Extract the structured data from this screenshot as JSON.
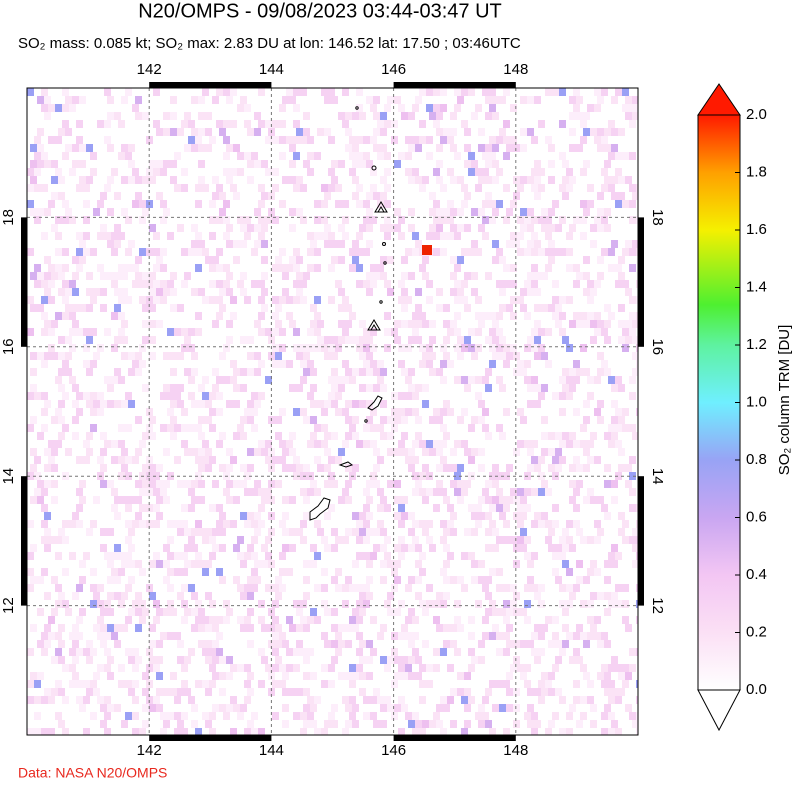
{
  "header": {
    "title": "N20/OMPS - 09/08/2023 03:44-03:47 UT",
    "subtitle": "SO₂ mass: 0.085 kt; SO₂ max: 2.83 DU at lon: 146.52 lat: 17.50 ; 03:46UTC"
  },
  "map": {
    "lonlim": [
      140,
      150
    ],
    "latlim": [
      10,
      20
    ],
    "lon_ticks": [
      142,
      144,
      146,
      148
    ],
    "lat_ticks": [
      12,
      14,
      16,
      18
    ]
  },
  "colorbar": {
    "label": "SO₂ column TRM [DU]",
    "lim": [
      0,
      2
    ],
    "ticks": [
      {
        "value": 0,
        "label": "0.0"
      },
      0.2,
      0.4,
      0.6,
      0.8,
      {
        "value": 1,
        "label": "1.0"
      },
      1.2,
      1.4,
      1.6,
      1.8,
      {
        "value": 2,
        "label": "2.0"
      }
    ]
  },
  "footer": {
    "credit": "Data: NASA N20/OMPS"
  }
}
